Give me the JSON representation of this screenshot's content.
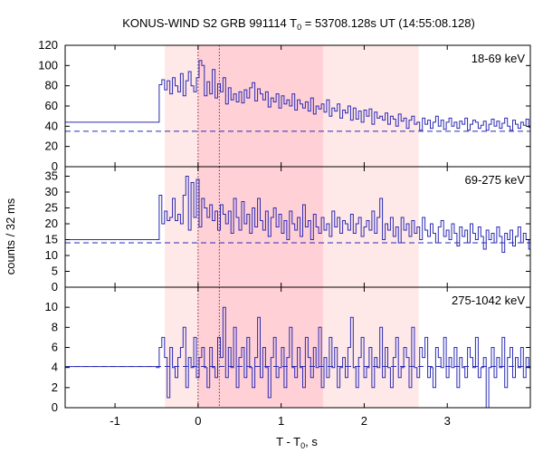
{
  "chart_data": {
    "type": "line",
    "title": "KONUS-WIND S2 GRB 991114 T",
    "title_sub": "0",
    "title_rest": " = 53708.128s UT (14:55:08.128)",
    "ylabel": "counts / 32 ms",
    "xlabel_main": "T - T",
    "xlabel_sub": "0",
    "xlabel_rest": ", s",
    "xlim": [
      -1.6,
      4.0
    ],
    "x_ticks": [
      -1,
      0,
      1,
      2,
      3
    ],
    "x_tick_labels": [
      "-1",
      "0",
      "1",
      "2",
      "3"
    ],
    "bin_width_s": 0.032,
    "shaded_intervals": [
      {
        "x0": -0.4,
        "x1": 2.656,
        "color": "#ffe8e8"
      },
      {
        "x0": 0.0,
        "x1": 1.504,
        "color": "#ffd0d6"
      }
    ],
    "vertical_lines": [
      0.0,
      0.256
    ],
    "line_color": "#2b2bb5",
    "panels": [
      {
        "name": "18-69 keV",
        "ylim": [
          0,
          120
        ],
        "y_ticks": [
          0,
          20,
          40,
          60,
          80,
          100,
          120
        ],
        "background": 35,
        "pre_trigger_level": 44,
        "pre_trigger_end": -0.5,
        "counts": [
          44,
          81,
          86,
          76,
          85,
          72,
          88,
          80,
          74,
          92,
          70,
          85,
          94,
          80,
          74,
          88,
          105,
          100,
          70,
          84,
          72,
          96,
          68,
          82,
          74,
          88,
          62,
          78,
          66,
          72,
          64,
          74,
          63,
          76,
          68,
          78,
          83,
          65,
          77,
          72,
          66,
          74,
          59,
          68,
          64,
          72,
          58,
          70,
          62,
          66,
          60,
          72,
          56,
          66,
          62,
          58,
          64,
          55,
          68,
          52,
          60,
          57,
          62,
          54,
          66,
          50,
          58,
          55,
          62,
          48,
          56,
          53,
          60,
          46,
          58,
          47,
          55,
          44,
          56,
          50,
          57,
          42,
          54,
          48,
          50,
          46,
          53,
          42,
          50,
          47,
          40,
          52,
          45,
          48,
          38,
          46,
          50,
          42,
          44,
          36,
          48,
          42,
          46,
          38,
          44,
          50,
          40,
          46,
          37,
          44,
          48,
          40,
          44,
          38,
          45,
          42,
          48,
          36,
          42,
          46,
          44,
          38,
          41,
          45,
          36,
          42,
          47,
          40,
          45,
          38,
          43,
          48,
          40,
          36,
          46,
          42,
          38,
          44,
          41,
          47,
          39,
          43,
          36,
          46,
          42,
          37,
          44,
          48,
          40,
          42,
          38,
          46,
          41,
          44,
          36,
          43,
          47,
          40,
          38,
          44
        ]
      },
      {
        "name": "69-275 keV",
        "ylim": [
          0,
          38
        ],
        "y_ticks": [
          0,
          5,
          10,
          15,
          20,
          25,
          30,
          35
        ],
        "background": 14,
        "pre_trigger_level": 15,
        "pre_trigger_end": -0.5,
        "counts": [
          15,
          29,
          20,
          24,
          21,
          22,
          28,
          21,
          23,
          20,
          29,
          35,
          18,
          33,
          22,
          34,
          19,
          28,
          25,
          22,
          26,
          21,
          24,
          18,
          26,
          23,
          20,
          24,
          17,
          28,
          22,
          18,
          27,
          20,
          23,
          17,
          25,
          19,
          28,
          21,
          18,
          24,
          16,
          22,
          25,
          19,
          23,
          17,
          21,
          15,
          24,
          20,
          18,
          22,
          16,
          26,
          19,
          21,
          15,
          23,
          19,
          17,
          22,
          18,
          20,
          16,
          24,
          19,
          22,
          17,
          21,
          20,
          18,
          23,
          17,
          20,
          22,
          16,
          19,
          21,
          18,
          24,
          17,
          22,
          28,
          15,
          20,
          18,
          22,
          16,
          19,
          14,
          22,
          18,
          20,
          16,
          21,
          17,
          19,
          15,
          22,
          18,
          16,
          20,
          17,
          14,
          19,
          21,
          16,
          18,
          15,
          20,
          17,
          13,
          19,
          16,
          18,
          14,
          20,
          17,
          15,
          19,
          16,
          12,
          18,
          15,
          17,
          14,
          19,
          16,
          11,
          17,
          15,
          18,
          13,
          16,
          19,
          14,
          17,
          15,
          12,
          18,
          16,
          14,
          17,
          15,
          10,
          18
        ]
      },
      {
        "name": "275-1042 keV",
        "ylim": [
          0,
          12
        ],
        "y_ticks": [
          0,
          2,
          4,
          6,
          8,
          10
        ],
        "background": 4.1,
        "pre_trigger_level": 4.1,
        "pre_trigger_end": -0.5,
        "counts": [
          4,
          6,
          7,
          5,
          1,
          6,
          4,
          3,
          5,
          6,
          8,
          2,
          5,
          4,
          7,
          3,
          5,
          6,
          4,
          2,
          6,
          4,
          3,
          7,
          5,
          10,
          3,
          6,
          4,
          8,
          2,
          5,
          6,
          3,
          7,
          4,
          2,
          5,
          9,
          3,
          6,
          4,
          1,
          5,
          7,
          3,
          4,
          6,
          2,
          5,
          8,
          4,
          3,
          6,
          4,
          2,
          7,
          5,
          3,
          6,
          4,
          8,
          2,
          5,
          3,
          7,
          4,
          6,
          2,
          4,
          5,
          3,
          6,
          9,
          4,
          2,
          5,
          7,
          3,
          4,
          6,
          2,
          5,
          4,
          8,
          3,
          6,
          4,
          2,
          5,
          7,
          3,
          4,
          6,
          5,
          2,
          8,
          4,
          3,
          6,
          5,
          7,
          3,
          4,
          2,
          6,
          5,
          4,
          7,
          3,
          5,
          4,
          6,
          2,
          5,
          4,
          3,
          6,
          5,
          4,
          7,
          3,
          4,
          5,
          0,
          4,
          6,
          3,
          5,
          4,
          7,
          2,
          5,
          6,
          3,
          5,
          4,
          6,
          3,
          5,
          4,
          6,
          3,
          5,
          4,
          6,
          2,
          5
        ]
      }
    ]
  }
}
